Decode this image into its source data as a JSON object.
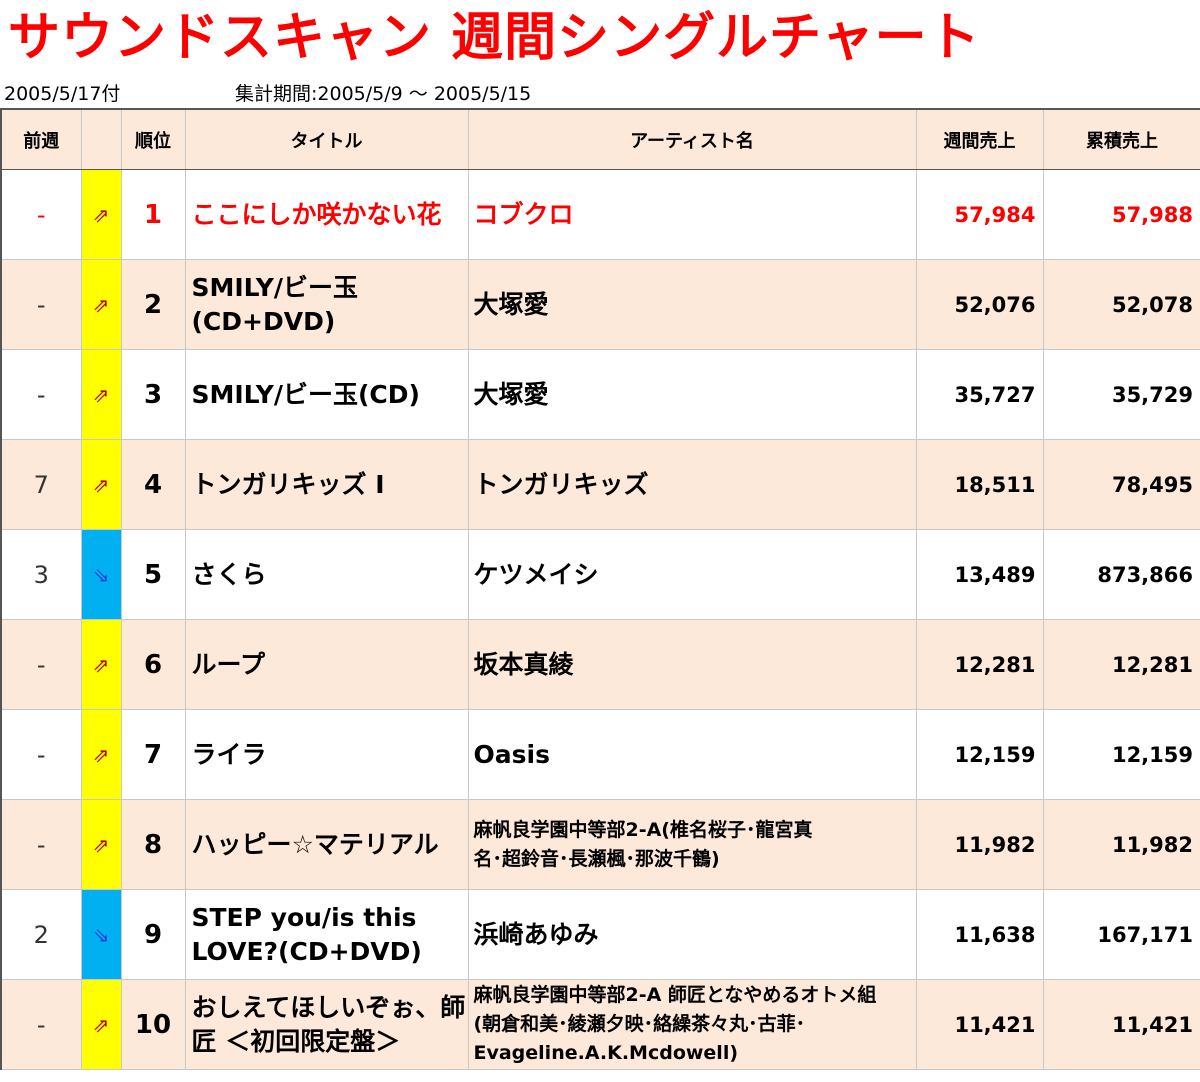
{
  "header": {
    "title": "サウンドスキャン 週間シングルチャート",
    "date": "2005/5/17付",
    "period": "集計期間:2005/5/9 ～ 2005/5/15"
  },
  "columns": {
    "prev": "前週",
    "move": "",
    "rank": "順位",
    "title": "タイトル",
    "artist": "アーティスト名",
    "weekly": "週間売上",
    "total": "累積売上"
  },
  "colors": {
    "accent": "#ff0000",
    "header_bg": "#fde9d9",
    "up_cell": "#ffff00",
    "down_cell": "#00b0f0"
  },
  "rows": [
    {
      "prev": "-",
      "move": "up",
      "arrow": "⇗",
      "rank": "1",
      "title_lines": [
        "ここにしか咲かない花"
      ],
      "artist_lines": [
        "コブクロ"
      ],
      "weekly": "57,984",
      "total": "57,988"
    },
    {
      "prev": "-",
      "move": "up",
      "arrow": "⇗",
      "rank": "2",
      "title_lines": [
        "SMILY/ビー玉",
        "(CD+DVD)"
      ],
      "artist_lines": [
        "大塚愛"
      ],
      "weekly": "52,076",
      "total": "52,078"
    },
    {
      "prev": "-",
      "move": "up",
      "arrow": "⇗",
      "rank": "3",
      "title_lines": [
        "SMILY/ビー玉(CD)"
      ],
      "artist_lines": [
        "大塚愛"
      ],
      "weekly": "35,727",
      "total": "35,729"
    },
    {
      "prev": "7",
      "move": "up",
      "arrow": "⇗",
      "rank": "4",
      "title_lines": [
        "トンガリキッズ I"
      ],
      "artist_lines": [
        "トンガリキッズ"
      ],
      "weekly": "18,511",
      "total": "78,495"
    },
    {
      "prev": "3",
      "move": "down",
      "arrow": "⇘",
      "rank": "5",
      "title_lines": [
        "さくら"
      ],
      "artist_lines": [
        "ケツメイシ"
      ],
      "weekly": "13,489",
      "total": "873,866"
    },
    {
      "prev": "-",
      "move": "up",
      "arrow": "⇗",
      "rank": "6",
      "title_lines": [
        "ループ"
      ],
      "artist_lines": [
        "坂本真綾"
      ],
      "weekly": "12,281",
      "total": "12,281"
    },
    {
      "prev": "-",
      "move": "up",
      "arrow": "⇗",
      "rank": "7",
      "title_lines": [
        "ライラ"
      ],
      "artist_lines": [
        "Oasis"
      ],
      "weekly": "12,159",
      "total": "12,159"
    },
    {
      "prev": "-",
      "move": "up",
      "arrow": "⇗",
      "rank": "8",
      "title_lines": [
        "ハッピー☆マテリアル"
      ],
      "artist_lines": [
        "麻帆良学園中等部2-A(椎名桜子･龍宮真",
        "名･超鈴音･長瀬楓･那波千鶴)"
      ],
      "artist_small": true,
      "weekly": "11,982",
      "total": "11,982"
    },
    {
      "prev": "2",
      "move": "down",
      "arrow": "⇘",
      "rank": "9",
      "title_lines": [
        "STEP you/is this",
        "LOVE?(CD+DVD)"
      ],
      "artist_lines": [
        "浜崎あゆみ"
      ],
      "weekly": "11,638",
      "total": "167,171"
    },
    {
      "prev": "-",
      "move": "up",
      "arrow": "⇗",
      "rank": "10",
      "title_lines": [
        "おしえてほしいぞぉ、師",
        "匠 ＜初回限定盤＞"
      ],
      "artist_lines": [
        "麻帆良学園中等部2-A 師匠となやめるオトメ組",
        "(朝倉和美･綾瀬夕映･絡繰茶々丸･古菲･",
        "Evageline.A.K.Mcdowell)"
      ],
      "artist_small": true,
      "weekly": "11,421",
      "total": "11,421"
    }
  ]
}
